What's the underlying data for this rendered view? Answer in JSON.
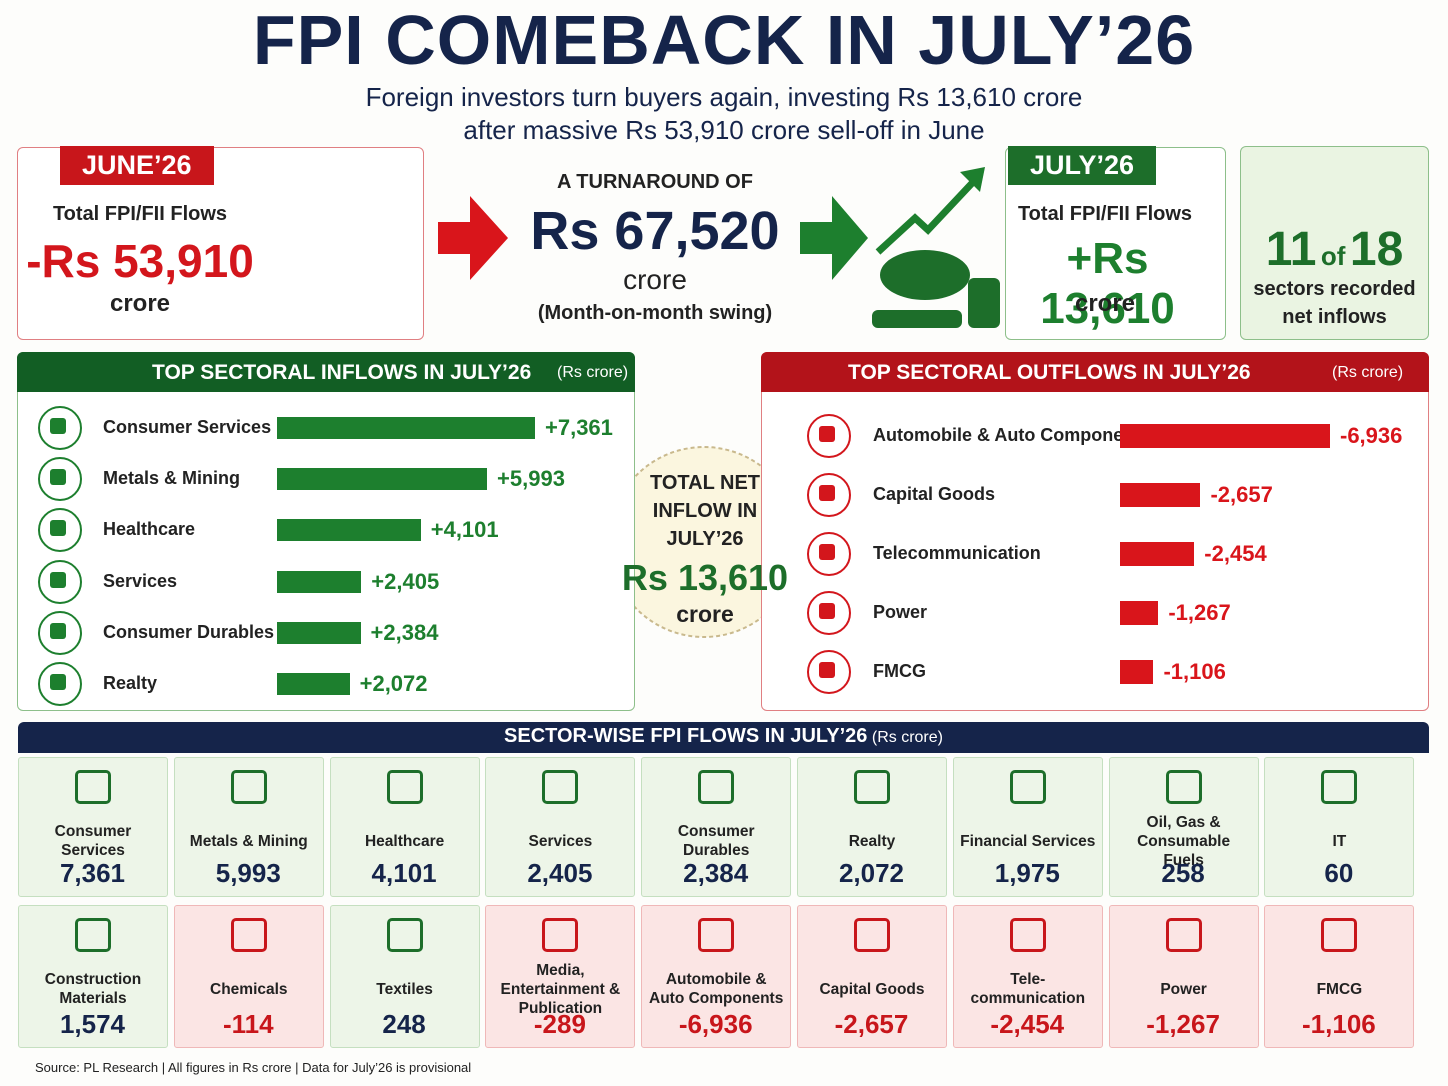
{
  "header": {
    "title": "FPI COMEBACK IN JULY’26",
    "subtitle_lines": [
      "Foreign investors turn buyers again, investing Rs 13,610 crore",
      "after massive Rs 53,910 crore sell-off in June"
    ]
  },
  "june": {
    "tag": "JUNE’26",
    "label": "Total FPI/FII Flows",
    "value_label": "-Rs 53,910",
    "unit": "crore"
  },
  "swing": {
    "heading": "A TURNAROUND OF",
    "value_label": "Rs 67,520",
    "unit": "crore",
    "note": "(Month-on-month swing)"
  },
  "july": {
    "tag": "JULY’26",
    "label": "Total FPI/FII Flows",
    "value_label": "+Rs 13,610",
    "unit": "crore"
  },
  "sectors_badge": {
    "count": "11",
    "of": "of",
    "total": "18",
    "lines": [
      "sectors recorded",
      "net inflows"
    ]
  },
  "inflows_chart": {
    "type": "bar",
    "title": "TOP SECTORAL INFLOWS IN JULY’26",
    "unit": "(Rs crore)",
    "categories": [
      "Consumer Services",
      "Metals & Mining",
      "Healthcare",
      "Services",
      "Consumer Durables",
      "Realty"
    ],
    "values": [
      7361,
      5993,
      4101,
      2405,
      2384,
      2072
    ],
    "value_labels": [
      "+7,361",
      "+5,993",
      "+4,101",
      "+2,405",
      "+2,384",
      "+2,072"
    ],
    "color": "#1d7f2e"
  },
  "outflows_chart": {
    "type": "bar",
    "title": "TOP SECTORAL OUTFLOWS IN JULY’26",
    "unit": "(Rs crore)",
    "categories": [
      "Automobile & Auto Components",
      "Capital Goods",
      "Telecommunication",
      "Power",
      "FMCG"
    ],
    "values": [
      -6936,
      -2657,
      -2454,
      -1267,
      -1106
    ],
    "value_labels": [
      "-6,936",
      "-2,657",
      "-2,454",
      "-1,267",
      "-1,106"
    ],
    "color": "#d9151b"
  },
  "total_badge": {
    "lines": [
      "TOTAL NET",
      "INFLOW IN",
      "JULY’26"
    ],
    "value_label": "Rs 13,610",
    "unit": "crore"
  },
  "sector_grid": {
    "title": "SECTOR-WISE FPI FLOWS IN JULY’26",
    "unit": "(Rs crore)",
    "tiles": [
      {
        "name": "Consumer Services",
        "value": "7,361"
      },
      {
        "name": "Metals & Mining",
        "value": "5,993"
      },
      {
        "name": "Healthcare",
        "value": "4,101"
      },
      {
        "name": "Services",
        "value": "2,405"
      },
      {
        "name": "Consumer Durables",
        "value": "2,384"
      },
      {
        "name": "Realty",
        "value": "2,072"
      },
      {
        "name": "Financial Services",
        "value": "1,975"
      },
      {
        "name": "Oil, Gas & Consumable Fuels",
        "value": "258"
      },
      {
        "name": "IT",
        "value": "60"
      },
      {
        "name": "Construction Materials",
        "value": "1,574"
      },
      {
        "name": "Chemicals",
        "value": "-114"
      },
      {
        "name": "Textiles",
        "value": "248"
      },
      {
        "name": "Media, Entertainment & Publication",
        "value": "-289"
      },
      {
        "name": "Automobile & Auto Components",
        "value": "-6,936"
      },
      {
        "name": "Capital Goods",
        "value": "-2,657"
      },
      {
        "name": "Tele-communication",
        "value": "-2,454"
      },
      {
        "name": "Power",
        "value": "-1,267"
      },
      {
        "name": "FMCG",
        "value": "-1,106"
      }
    ]
  },
  "footer": "Source: PL Research | All figures in Rs crore | Data for July’26 is provisional"
}
